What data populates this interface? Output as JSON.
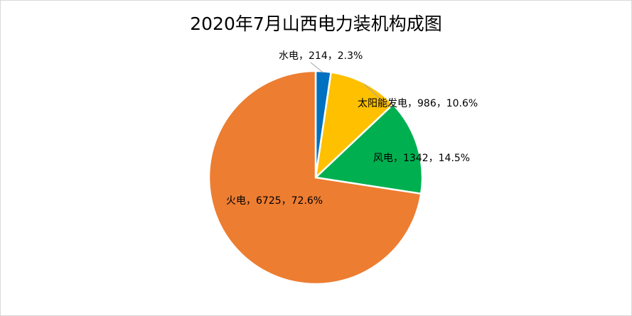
{
  "chart_data": {
    "type": "pie",
    "title": "2020年7月山西电力装机构成图",
    "slices": [
      {
        "name": "水电",
        "value": 214,
        "percent": "2.3%",
        "color": "#0070c0"
      },
      {
        "name": "太阳能发电",
        "value": 986,
        "percent": "10.6%",
        "color": "#ffc000"
      },
      {
        "name": "风电",
        "value": 1342,
        "percent": "14.5%",
        "color": "#00b050"
      },
      {
        "name": "火电",
        "value": 6725,
        "percent": "72.6%",
        "color": "#ed7d31"
      }
    ],
    "label_format": "{name}，{value}，{percent}",
    "legend": "none"
  }
}
